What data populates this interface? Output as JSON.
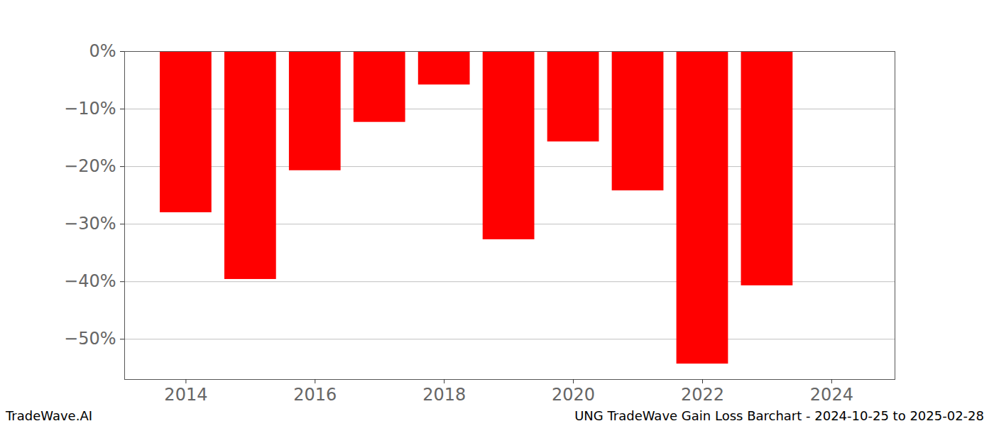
{
  "chart_data": {
    "type": "bar",
    "title": "UNG TradeWave Gain Loss Barchart - 2024-10-25 to 2025-02-28",
    "annotations": [
      {
        "text": "TradeWave.AI"
      }
    ],
    "x": [
      2014,
      2015,
      2016,
      2017,
      2018,
      2019,
      2020,
      2021,
      2022,
      2023
    ],
    "values": [
      -28.0,
      -39.6,
      -20.7,
      -12.3,
      -5.8,
      -32.7,
      -15.7,
      -24.2,
      -54.3,
      -40.7
    ],
    "color": "#ff0000",
    "xlim": [
      2013.05,
      2024.98
    ],
    "xticks": [
      2014,
      2016,
      2018,
      2020,
      2022,
      2024
    ],
    "ylim": [
      -57,
      0
    ],
    "yticks": [
      {
        "value": 0,
        "label": "0%"
      },
      {
        "value": -10,
        "label": "−10%"
      },
      {
        "value": -20,
        "label": "−20%"
      },
      {
        "value": -30,
        "label": "−30%"
      },
      {
        "value": -40,
        "label": "−40%"
      },
      {
        "value": -50,
        "label": "−50%"
      }
    ],
    "grid": true
  }
}
